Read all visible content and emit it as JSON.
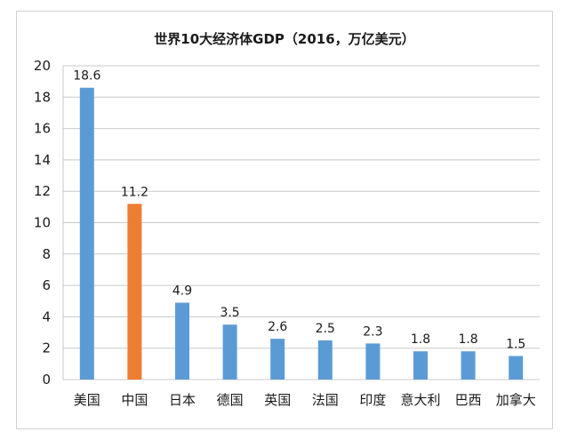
{
  "chart_data": {
    "type": "bar",
    "title": "世界10大经济体GDP（2016，万亿美元）",
    "categories": [
      "美国",
      "中国",
      "日本",
      "德国",
      "英国",
      "法国",
      "印度",
      "意大利",
      "巴西",
      "加拿大"
    ],
    "values": [
      18.6,
      11.2,
      4.9,
      3.5,
      2.6,
      2.5,
      2.3,
      1.8,
      1.8,
      1.5
    ],
    "data_labels": [
      "18.6",
      "11.2",
      "4.9",
      "3.5",
      "2.6",
      "2.5",
      "2.3",
      "1.8",
      "1.8",
      "1.5"
    ],
    "yticks": [
      "0",
      "2",
      "4",
      "6",
      "8",
      "10",
      "12",
      "14",
      "16",
      "18",
      "20"
    ],
    "ylim": [
      0,
      20
    ],
    "xlabel": "",
    "ylabel": "",
    "grid": true,
    "colors": {
      "default": "#5b9bd5",
      "highlight": "#ed7d31",
      "grid": "#c8c8c8"
    },
    "highlight_index": 1
  }
}
